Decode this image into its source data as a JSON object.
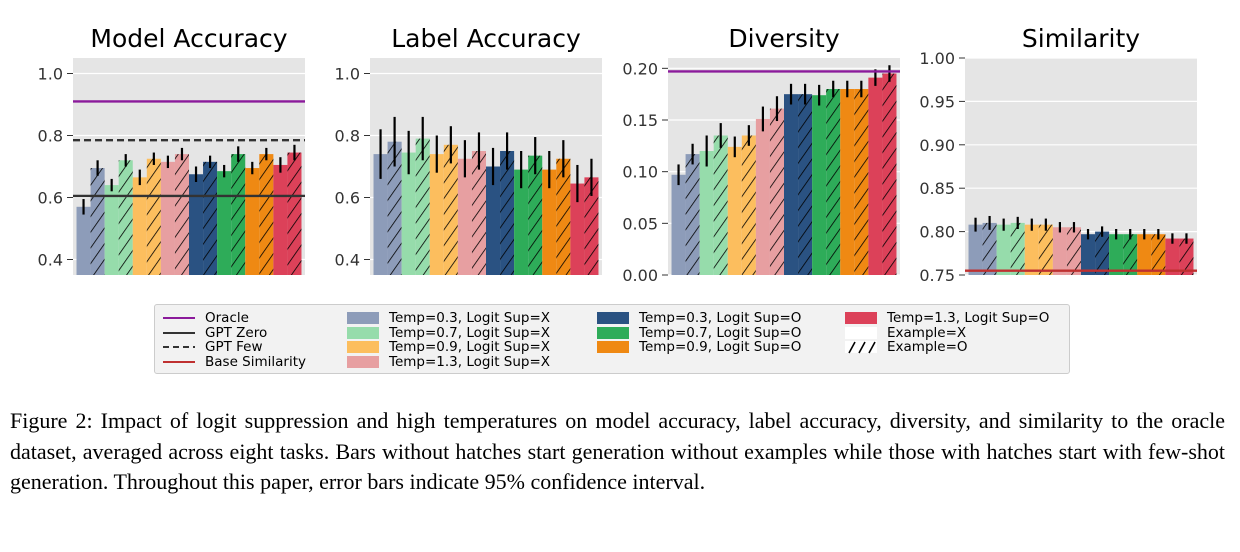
{
  "chart_data": [
    {
      "type": "bar",
      "title": "Model Accuracy",
      "ylim": [
        0.35,
        1.05
      ],
      "yticks": [
        0.4,
        0.6,
        0.8,
        1.0
      ],
      "ytick_labels": [
        "0.4",
        "0.6",
        "0.8",
        "1.0"
      ],
      "grid": true,
      "lines": [
        {
          "name": "Oracle",
          "value": 0.91
        },
        {
          "name": "GPT Zero",
          "value": 0.605
        },
        {
          "name": "GPT Few",
          "value": 0.785
        }
      ],
      "values": [
        0.57,
        0.695,
        0.64,
        0.72,
        0.665,
        0.725,
        0.715,
        0.74,
        0.675,
        0.715,
        0.685,
        0.74,
        0.695,
        0.74,
        0.705,
        0.745
      ],
      "errors": [
        0.025,
        0.025,
        0.02,
        0.02,
        0.025,
        0.02,
        0.02,
        0.02,
        0.025,
        0.02,
        0.02,
        0.025,
        0.02,
        0.02,
        0.025,
        0.025
      ]
    },
    {
      "type": "bar",
      "title": "Label Accuracy",
      "ylim": [
        0.35,
        1.05
      ],
      "yticks": [
        0.4,
        0.6,
        0.8,
        1.0
      ],
      "ytick_labels": [
        "0.4",
        "0.6",
        "0.8",
        "1.0"
      ],
      "grid": true,
      "lines": [],
      "values": [
        0.74,
        0.78,
        0.745,
        0.79,
        0.74,
        0.77,
        0.725,
        0.75,
        0.7,
        0.75,
        0.69,
        0.735,
        0.69,
        0.725,
        0.645,
        0.665
      ],
      "errors": [
        0.08,
        0.08,
        0.07,
        0.07,
        0.06,
        0.06,
        0.06,
        0.06,
        0.06,
        0.06,
        0.06,
        0.06,
        0.06,
        0.06,
        0.06,
        0.06
      ]
    },
    {
      "type": "bar",
      "title": "Diversity",
      "ylim": [
        0.0,
        0.21
      ],
      "yticks": [
        0.0,
        0.05,
        0.1,
        0.15,
        0.2
      ],
      "ytick_labels": [
        "0.00",
        "0.05",
        "0.10",
        "0.15",
        "0.20"
      ],
      "grid": true,
      "lines": [
        {
          "name": "Oracle",
          "value": 0.197
        }
      ],
      "values": [
        0.097,
        0.117,
        0.12,
        0.135,
        0.124,
        0.135,
        0.151,
        0.161,
        0.175,
        0.175,
        0.174,
        0.18,
        0.18,
        0.18,
        0.191,
        0.195
      ],
      "errors": [
        0.01,
        0.01,
        0.015,
        0.012,
        0.01,
        0.01,
        0.012,
        0.012,
        0.01,
        0.01,
        0.01,
        0.008,
        0.008,
        0.008,
        0.008,
        0.008
      ]
    },
    {
      "type": "bar",
      "title": "Similarity",
      "ylim": [
        0.75,
        1.0
      ],
      "yticks": [
        0.75,
        0.8,
        0.85,
        0.9,
        0.95,
        1.0
      ],
      "ytick_labels": [
        "0.75",
        "0.80",
        "0.85",
        "0.90",
        "0.95",
        "1.00"
      ],
      "grid": true,
      "lines": [
        {
          "name": "Base Similarity",
          "value": 0.755
        }
      ],
      "values": [
        0.808,
        0.81,
        0.808,
        0.81,
        0.808,
        0.808,
        0.805,
        0.805,
        0.797,
        0.8,
        0.797,
        0.797,
        0.797,
        0.797,
        0.792,
        0.792
      ],
      "errors": [
        0.008,
        0.008,
        0.007,
        0.007,
        0.007,
        0.007,
        0.006,
        0.006,
        0.006,
        0.006,
        0.006,
        0.006,
        0.006,
        0.006,
        0.006,
        0.006
      ]
    }
  ],
  "bar_groups": [
    {
      "label": "Temp=0.3, Logit Sup=X",
      "color": "#8d9cb9"
    },
    {
      "label": "Temp=0.7, Logit Sup=X",
      "color": "#96dcab"
    },
    {
      "label": "Temp=0.9, Logit Sup=X",
      "color": "#fcbe5e"
    },
    {
      "label": "Temp=1.3, Logit Sup=X",
      "color": "#e79fa1"
    },
    {
      "label": "Temp=0.3, Logit Sup=O",
      "color": "#2a5282"
    },
    {
      "label": "Temp=0.7, Logit Sup=O",
      "color": "#2eac59"
    },
    {
      "label": "Temp=0.9, Logit Sup=O",
      "color": "#ef8913"
    },
    {
      "label": "Temp=1.3, Logit Sup=O",
      "color": "#dc4159"
    }
  ],
  "line_styles": {
    "Oracle": {
      "color": "#8b1a9b",
      "dash": "solid"
    },
    "GPT Zero": {
      "color": "#333333",
      "dash": "solid"
    },
    "GPT Few": {
      "color": "#333333",
      "dash": "dashed"
    },
    "Base Similarity": {
      "color": "#bf3030",
      "dash": "solid"
    }
  },
  "legend": {
    "col1": [
      "Oracle",
      "GPT Zero",
      "GPT Few",
      "Base Similarity"
    ],
    "col2": [
      "Temp=0.3, Logit Sup=X",
      "Temp=0.7, Logit Sup=X",
      "Temp=0.9, Logit Sup=X",
      "Temp=1.3, Logit Sup=X"
    ],
    "col3": [
      "Temp=0.3, Logit Sup=O",
      "Temp=0.7, Logit Sup=O",
      "Temp=0.9, Logit Sup=O"
    ],
    "col4": [
      "Temp=1.3, Logit Sup=O",
      "Example=X",
      "Example=O"
    ]
  },
  "caption": "Figure 2: Impact of logit suppression and high temperatures on model accuracy, label accuracy, diversity, and similarity to the oracle dataset, averaged across eight tasks. Bars without hatches start generation without examples while those with hatches start with few-shot generation. Throughout this paper, error bars indicate 95% confidence interval."
}
